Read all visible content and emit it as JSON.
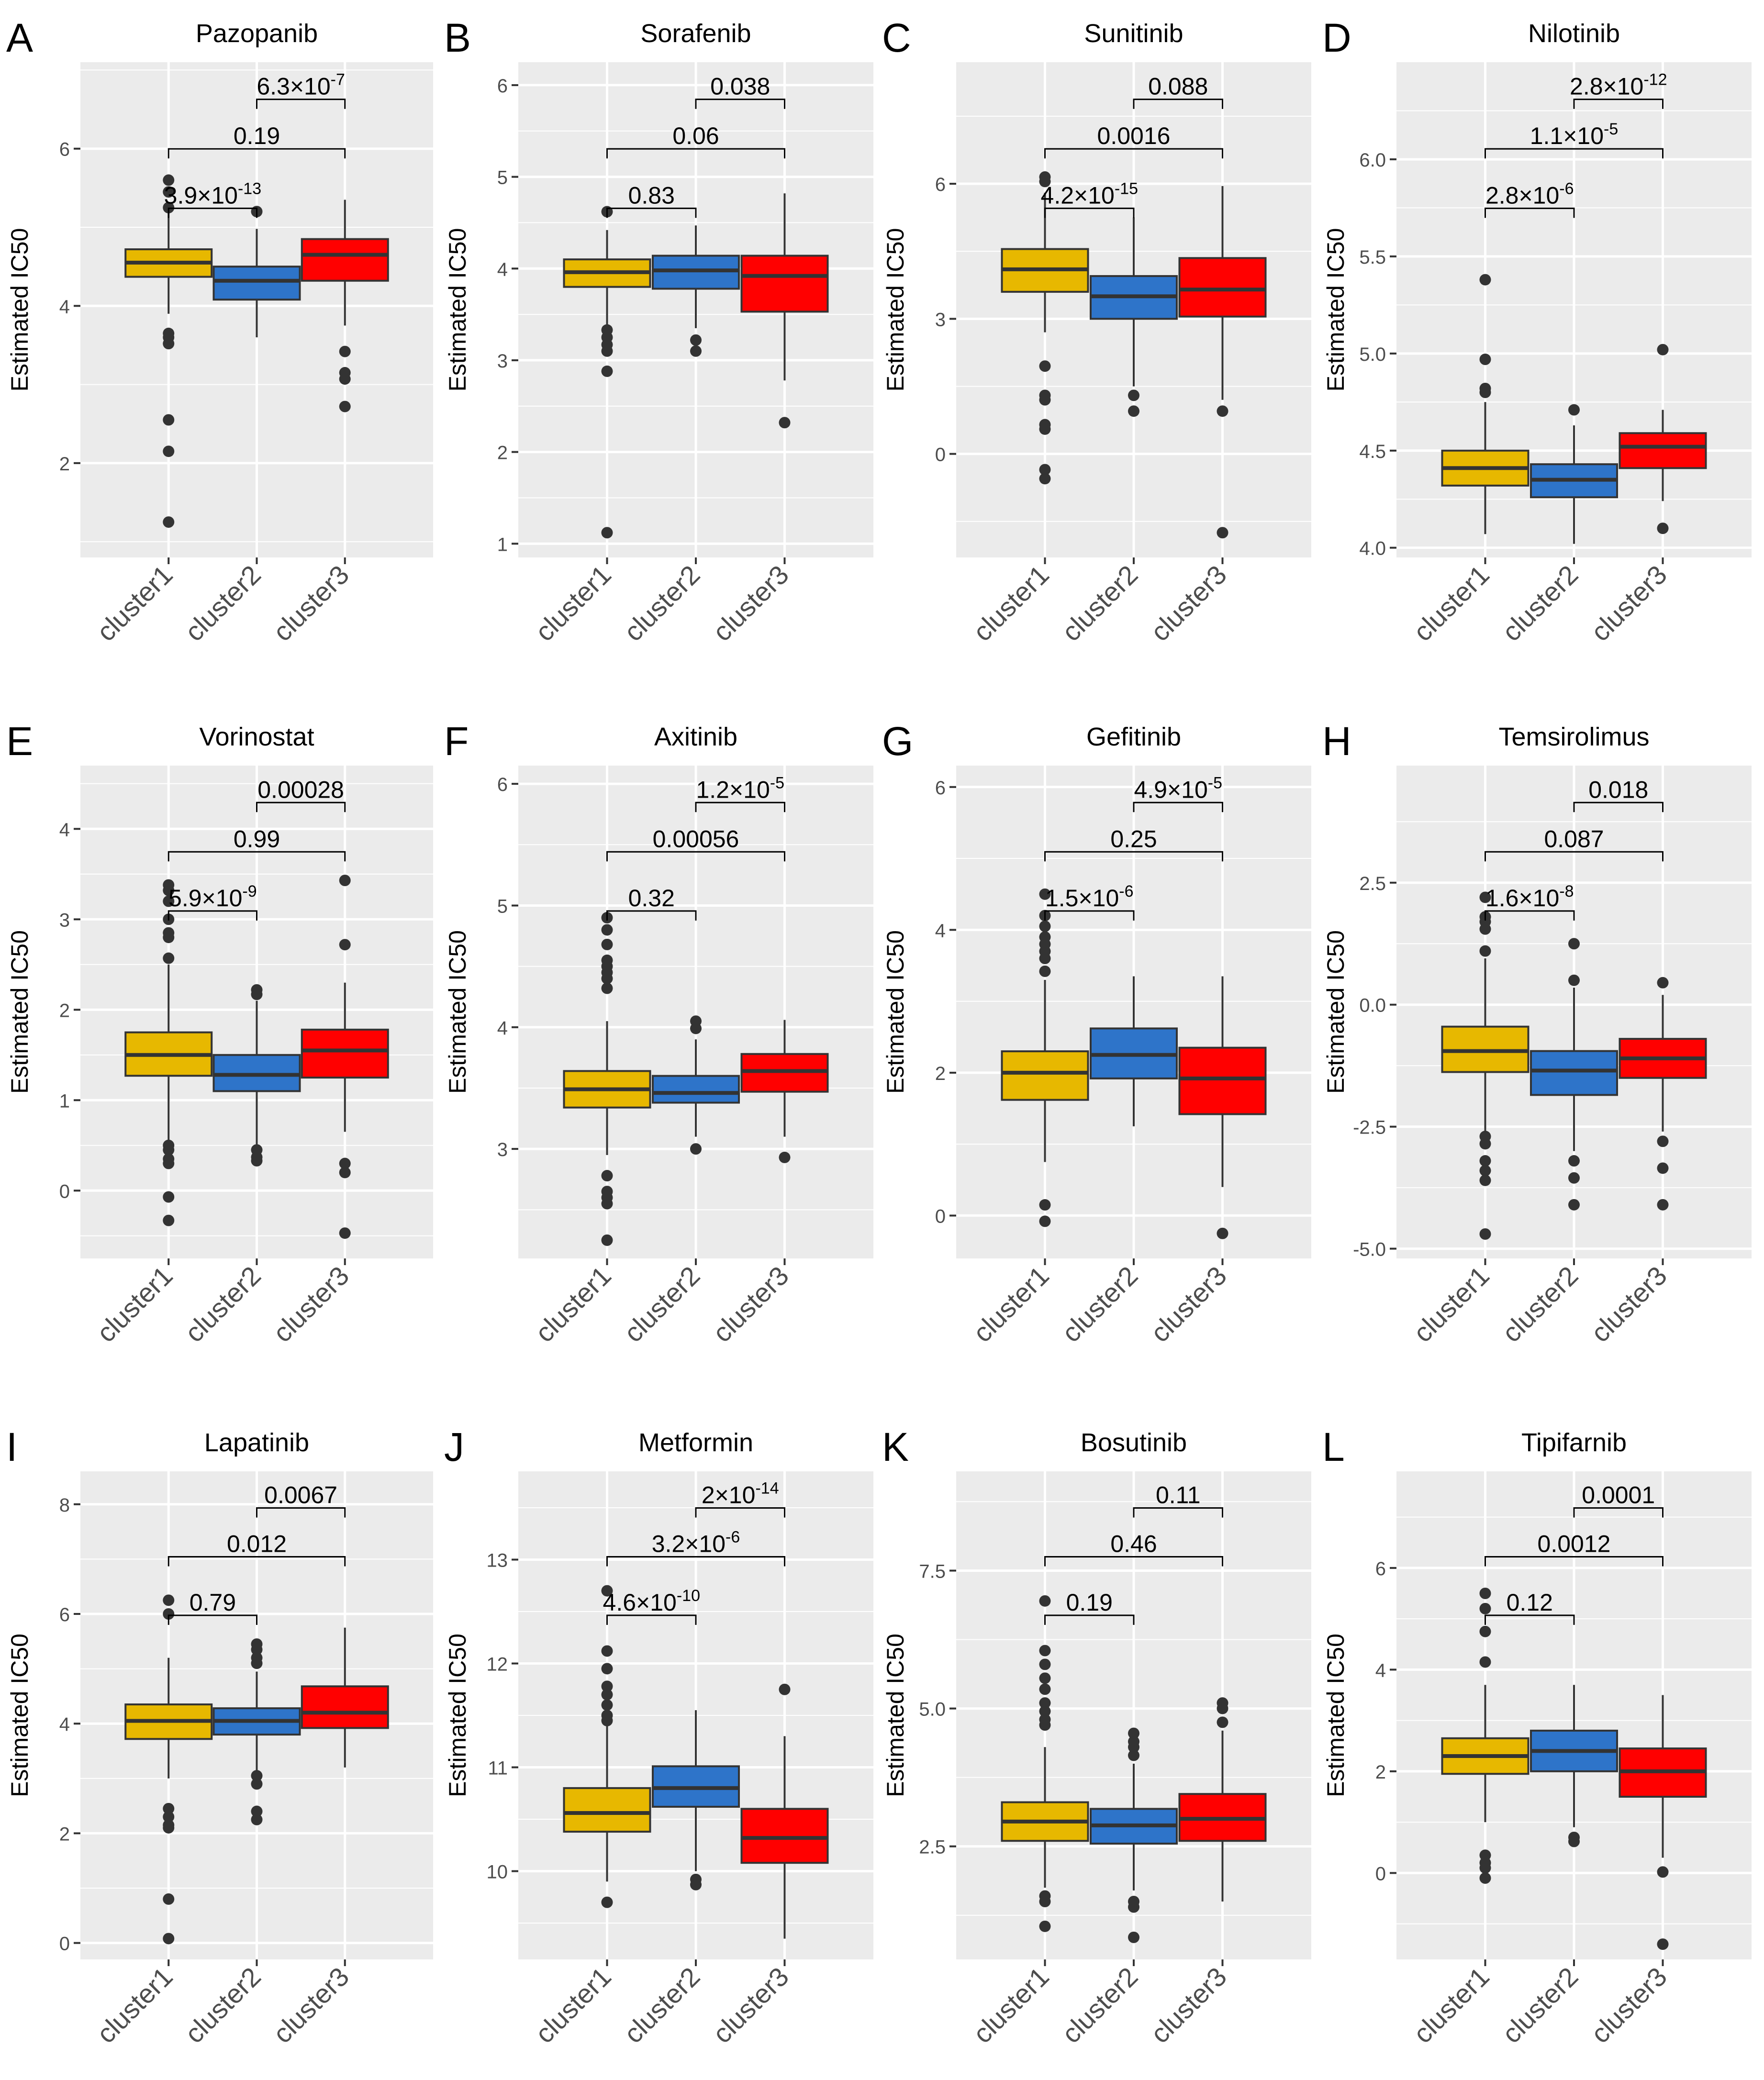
{
  "figure": {
    "axis_label_y": "Estimated IC50",
    "colors": {
      "cluster1": "#E7B800",
      "cluster2": "#2E74C9",
      "cluster3": "#FF0000",
      "panel_bg": "#EBEBEB",
      "grid": "#FFFFFF",
      "box_line": "#333333"
    }
  },
  "chart_data": [
    {
      "letter": "A",
      "title": "Pazopanib",
      "type": "box",
      "categories": [
        "cluster1",
        "cluster2",
        "cluster3"
      ],
      "ylim": [
        0.8,
        7.1
      ],
      "yticks": [
        2,
        4,
        6
      ],
      "ytick_labels": [
        "2",
        "4",
        "6"
      ],
      "boxes": [
        {
          "whislo": 3.9,
          "q1": 4.37,
          "med": 4.55,
          "q3": 4.72,
          "whishi": 5.2,
          "outliers": [
            5.6,
            5.45,
            5.25,
            3.65,
            3.6,
            3.52,
            2.55,
            2.15,
            1.25
          ]
        },
        {
          "whislo": 3.6,
          "q1": 4.08,
          "med": 4.32,
          "q3": 4.5,
          "whishi": 4.98,
          "outliers": [
            5.2
          ]
        },
        {
          "whislo": 3.75,
          "q1": 4.32,
          "med": 4.65,
          "q3": 4.85,
          "whishi": 5.35,
          "outliers": [
            3.42,
            3.15,
            3.07,
            2.72
          ]
        }
      ],
      "comparisons": [
        {
          "from": 0,
          "to": 1,
          "level": 0,
          "base": "3.9×10",
          "exp": "-13"
        },
        {
          "from": 0,
          "to": 2,
          "level": 1,
          "base": "0.19",
          "exp": ""
        },
        {
          "from": 1,
          "to": 2,
          "level": 2,
          "base": "6.3×10",
          "exp": "-7"
        }
      ]
    },
    {
      "letter": "B",
      "title": "Sorafenib",
      "type": "box",
      "categories": [
        "cluster1",
        "cluster2",
        "cluster3"
      ],
      "ylim": [
        0.85,
        6.25
      ],
      "yticks": [
        1,
        2,
        3,
        4,
        5,
        6
      ],
      "ytick_labels": [
        "1",
        "2",
        "3",
        "4",
        "5",
        "6"
      ],
      "boxes": [
        {
          "whislo": 3.38,
          "q1": 3.8,
          "med": 3.96,
          "q3": 4.1,
          "whishi": 4.42,
          "outliers": [
            4.62,
            3.33,
            3.25,
            3.17,
            3.1,
            2.88,
            1.12
          ]
        },
        {
          "whislo": 3.35,
          "q1": 3.78,
          "med": 3.98,
          "q3": 4.14,
          "whishi": 4.47,
          "outliers": [
            3.22,
            3.1
          ]
        },
        {
          "whislo": 2.78,
          "q1": 3.53,
          "med": 3.92,
          "q3": 4.14,
          "whishi": 4.82,
          "outliers": [
            2.32
          ]
        }
      ],
      "comparisons": [
        {
          "from": 0,
          "to": 1,
          "level": 0,
          "base": "0.83",
          "exp": ""
        },
        {
          "from": 0,
          "to": 2,
          "level": 1,
          "base": "0.06",
          "exp": ""
        },
        {
          "from": 1,
          "to": 2,
          "level": 2,
          "base": "0.038",
          "exp": ""
        }
      ]
    },
    {
      "letter": "C",
      "title": "Sunitinib",
      "type": "box",
      "categories": [
        "cluster1",
        "cluster2",
        "cluster3"
      ],
      "ylim": [
        -2.3,
        8.7
      ],
      "yticks": [
        0,
        3,
        6
      ],
      "ytick_labels": [
        "0",
        "3",
        "6"
      ],
      "boxes": [
        {
          "whislo": 2.7,
          "q1": 3.6,
          "med": 4.1,
          "q3": 4.55,
          "whishi": 5.8,
          "outliers": [
            6.15,
            6.05,
            1.95,
            1.3,
            1.2,
            0.65,
            0.55,
            -0.35,
            -0.55
          ]
        },
        {
          "whislo": 1.5,
          "q1": 3.0,
          "med": 3.5,
          "q3": 3.95,
          "whishi": 5.25,
          "outliers": [
            1.3,
            0.95
          ]
        },
        {
          "whislo": 1.2,
          "q1": 3.05,
          "med": 3.65,
          "q3": 4.35,
          "whishi": 5.95,
          "outliers": [
            0.95,
            -1.75
          ]
        }
      ],
      "comparisons": [
        {
          "from": 0,
          "to": 1,
          "level": 0,
          "base": "4.2×10",
          "exp": "-15"
        },
        {
          "from": 0,
          "to": 2,
          "level": 1,
          "base": "0.0016",
          "exp": ""
        },
        {
          "from": 1,
          "to": 2,
          "level": 2,
          "base": "0.088",
          "exp": ""
        }
      ]
    },
    {
      "letter": "D",
      "title": "Nilotinib",
      "type": "box",
      "categories": [
        "cluster1",
        "cluster2",
        "cluster3"
      ],
      "ylim": [
        3.95,
        6.5
      ],
      "yticks": [
        4.0,
        4.5,
        5.0,
        5.5,
        6.0
      ],
      "ytick_labels": [
        "4.0",
        "4.5",
        "5.0",
        "5.5",
        "6.0"
      ],
      "boxes": [
        {
          "whislo": 4.07,
          "q1": 4.32,
          "med": 4.41,
          "q3": 4.5,
          "whishi": 4.75,
          "outliers": [
            5.38,
            4.97,
            4.82,
            4.8
          ]
        },
        {
          "whislo": 4.02,
          "q1": 4.26,
          "med": 4.35,
          "q3": 4.43,
          "whishi": 4.63,
          "outliers": [
            4.71
          ]
        },
        {
          "whislo": 4.24,
          "q1": 4.41,
          "med": 4.52,
          "q3": 4.59,
          "whishi": 4.71,
          "outliers": [
            5.02,
            4.1
          ]
        }
      ],
      "comparisons": [
        {
          "from": 0,
          "to": 1,
          "level": 0,
          "base": "2.8×10",
          "exp": "-6"
        },
        {
          "from": 0,
          "to": 2,
          "level": 1,
          "base": "1.1×10",
          "exp": "-5"
        },
        {
          "from": 1,
          "to": 2,
          "level": 2,
          "base": "2.8×10",
          "exp": "-12"
        }
      ]
    },
    {
      "letter": "E",
      "title": "Vorinostat",
      "type": "box",
      "categories": [
        "cluster1",
        "cluster2",
        "cluster3"
      ],
      "ylim": [
        -0.75,
        4.7
      ],
      "yticks": [
        0,
        1,
        2,
        3,
        4
      ],
      "ytick_labels": [
        "0",
        "1",
        "2",
        "3",
        "4"
      ],
      "boxes": [
        {
          "whislo": 0.55,
          "q1": 1.27,
          "med": 1.5,
          "q3": 1.75,
          "whishi": 2.5,
          "outliers": [
            3.38,
            3.32,
            3.2,
            3.0,
            2.85,
            2.8,
            2.57,
            0.5,
            0.45,
            0.35,
            0.3,
            -0.07,
            -0.33
          ]
        },
        {
          "whislo": 0.5,
          "q1": 1.1,
          "med": 1.28,
          "q3": 1.5,
          "whishi": 2.1,
          "outliers": [
            2.22,
            2.17,
            0.45,
            0.37,
            0.33
          ]
        },
        {
          "whislo": 0.65,
          "q1": 1.25,
          "med": 1.55,
          "q3": 1.78,
          "whishi": 2.3,
          "outliers": [
            3.43,
            2.72,
            0.3,
            0.2,
            -0.47
          ]
        }
      ],
      "comparisons": [
        {
          "from": 0,
          "to": 1,
          "level": 0,
          "base": "5.9×10",
          "exp": "-9"
        },
        {
          "from": 0,
          "to": 2,
          "level": 1,
          "base": "0.99",
          "exp": ""
        },
        {
          "from": 1,
          "to": 2,
          "level": 2,
          "base": "0.00028",
          "exp": ""
        }
      ]
    },
    {
      "letter": "F",
      "title": "Axitinib",
      "type": "box",
      "categories": [
        "cluster1",
        "cluster2",
        "cluster3"
      ],
      "ylim": [
        2.1,
        6.15
      ],
      "yticks": [
        3,
        4,
        5,
        6
      ],
      "ytick_labels": [
        "3",
        "4",
        "5",
        "6"
      ],
      "boxes": [
        {
          "whislo": 2.95,
          "q1": 3.34,
          "med": 3.49,
          "q3": 3.64,
          "whishi": 4.05,
          "outliers": [
            4.9,
            4.8,
            4.68,
            4.55,
            4.5,
            4.45,
            4.4,
            4.32,
            2.78,
            2.65,
            2.6,
            2.55,
            2.25
          ]
        },
        {
          "whislo": 3.1,
          "q1": 3.38,
          "med": 3.46,
          "q3": 3.6,
          "whishi": 3.9,
          "outliers": [
            4.05,
            3.99,
            3.0
          ]
        },
        {
          "whislo": 3.1,
          "q1": 3.47,
          "med": 3.64,
          "q3": 3.78,
          "whishi": 4.06,
          "outliers": [
            2.93
          ]
        }
      ],
      "comparisons": [
        {
          "from": 0,
          "to": 1,
          "level": 0,
          "base": "0.32",
          "exp": ""
        },
        {
          "from": 0,
          "to": 2,
          "level": 1,
          "base": "0.00056",
          "exp": ""
        },
        {
          "from": 1,
          "to": 2,
          "level": 2,
          "base": "1.2×10",
          "exp": "-5"
        }
      ]
    },
    {
      "letter": "G",
      "title": "Gefitinib",
      "type": "box",
      "categories": [
        "cluster1",
        "cluster2",
        "cluster3"
      ],
      "ylim": [
        -0.6,
        6.3
      ],
      "yticks": [
        0,
        2,
        4,
        6
      ],
      "ytick_labels": [
        "0",
        "2",
        "4",
        "6"
      ],
      "boxes": [
        {
          "whislo": 0.75,
          "q1": 1.62,
          "med": 2.0,
          "q3": 2.3,
          "whishi": 3.3,
          "outliers": [
            4.5,
            4.2,
            4.05,
            3.9,
            3.8,
            3.7,
            3.6,
            3.42,
            0.15,
            -0.08
          ]
        },
        {
          "whislo": 1.25,
          "q1": 1.92,
          "med": 2.25,
          "q3": 2.62,
          "whishi": 3.35,
          "outliers": []
        },
        {
          "whislo": 0.4,
          "q1": 1.42,
          "med": 1.92,
          "q3": 2.35,
          "whishi": 3.35,
          "outliers": [
            -0.25
          ]
        }
      ],
      "comparisons": [
        {
          "from": 0,
          "to": 1,
          "level": 0,
          "base": "1.5×10",
          "exp": "-6"
        },
        {
          "from": 0,
          "to": 2,
          "level": 1,
          "base": "0.25",
          "exp": ""
        },
        {
          "from": 1,
          "to": 2,
          "level": 2,
          "base": "4.9×10",
          "exp": "-5"
        }
      ]
    },
    {
      "letter": "H",
      "title": "Temsirolimus",
      "type": "box",
      "categories": [
        "cluster1",
        "cluster2",
        "cluster3"
      ],
      "ylim": [
        -5.2,
        4.9
      ],
      "yticks": [
        -5.0,
        -2.5,
        0.0,
        2.5
      ],
      "ytick_labels": [
        "-5.0",
        "-2.5",
        "0.0",
        "2.5"
      ],
      "boxes": [
        {
          "whislo": -2.65,
          "q1": -1.38,
          "med": -0.95,
          "q3": -0.45,
          "whishi": 0.95,
          "outliers": [
            2.2,
            1.8,
            1.7,
            1.55,
            1.1,
            -2.7,
            -2.85,
            -3.2,
            -3.4,
            -3.6,
            -4.7
          ]
        },
        {
          "whislo": -3.0,
          "q1": -1.85,
          "med": -1.35,
          "q3": -0.95,
          "whishi": 0.35,
          "outliers": [
            1.25,
            0.5,
            -3.2,
            -3.55,
            -4.1
          ]
        },
        {
          "whislo": -2.6,
          "q1": -1.5,
          "med": -1.1,
          "q3": -0.7,
          "whishi": 0.2,
          "outliers": [
            0.45,
            -2.8,
            -3.35,
            -4.1
          ]
        }
      ],
      "comparisons": [
        {
          "from": 0,
          "to": 1,
          "level": 0,
          "base": "1.6×10",
          "exp": "-8"
        },
        {
          "from": 0,
          "to": 2,
          "level": 1,
          "base": "0.087",
          "exp": ""
        },
        {
          "from": 1,
          "to": 2,
          "level": 2,
          "base": "0.018",
          "exp": ""
        }
      ]
    },
    {
      "letter": "I",
      "title": "Lapatinib",
      "type": "box",
      "categories": [
        "cluster1",
        "cluster2",
        "cluster3"
      ],
      "ylim": [
        -0.3,
        8.6
      ],
      "yticks": [
        0,
        2,
        4,
        6,
        8
      ],
      "ytick_labels": [
        "0",
        "2",
        "4",
        "6",
        "8"
      ],
      "boxes": [
        {
          "whislo": 3.0,
          "q1": 3.72,
          "med": 4.05,
          "q3": 4.35,
          "whishi": 5.2,
          "outliers": [
            6.25,
            6.0,
            2.45,
            2.3,
            2.15,
            2.1,
            0.8,
            0.08
          ]
        },
        {
          "whislo": 3.05,
          "q1": 3.8,
          "med": 4.05,
          "q3": 4.28,
          "whishi": 4.95,
          "outliers": [
            5.45,
            5.35,
            5.2,
            5.1,
            3.05,
            2.9,
            2.4,
            2.25
          ]
        },
        {
          "whislo": 3.2,
          "q1": 3.92,
          "med": 4.2,
          "q3": 4.68,
          "whishi": 5.75,
          "outliers": []
        }
      ],
      "comparisons": [
        {
          "from": 0,
          "to": 1,
          "level": 0,
          "base": "0.79",
          "exp": ""
        },
        {
          "from": 0,
          "to": 2,
          "level": 1,
          "base": "0.012",
          "exp": ""
        },
        {
          "from": 1,
          "to": 2,
          "level": 2,
          "base": "0.0067",
          "exp": ""
        }
      ]
    },
    {
      "letter": "J",
      "title": "Metformin",
      "type": "box",
      "categories": [
        "cluster1",
        "cluster2",
        "cluster3"
      ],
      "ylim": [
        9.15,
        13.85
      ],
      "yticks": [
        10,
        11,
        12,
        13
      ],
      "ytick_labels": [
        "10",
        "11",
        "12",
        "13"
      ],
      "boxes": [
        {
          "whislo": 9.9,
          "q1": 10.38,
          "med": 10.56,
          "q3": 10.8,
          "whishi": 11.4,
          "outliers": [
            12.7,
            12.12,
            11.95,
            11.78,
            11.7,
            11.6,
            11.5,
            11.45,
            9.7
          ]
        },
        {
          "whislo": 10.0,
          "q1": 10.62,
          "med": 10.8,
          "q3": 11.01,
          "whishi": 11.55,
          "outliers": [
            9.92,
            9.87
          ]
        },
        {
          "whislo": 9.35,
          "q1": 10.08,
          "med": 10.32,
          "q3": 10.6,
          "whishi": 11.3,
          "outliers": [
            11.75
          ]
        }
      ],
      "comparisons": [
        {
          "from": 0,
          "to": 1,
          "level": 0,
          "base": "4.6×10",
          "exp": "-10"
        },
        {
          "from": 0,
          "to": 2,
          "level": 1,
          "base": "3.2×10",
          "exp": "-6"
        },
        {
          "from": 1,
          "to": 2,
          "level": 2,
          "base": "2×10",
          "exp": "-14"
        }
      ]
    },
    {
      "letter": "K",
      "title": "Bosutinib",
      "type": "box",
      "categories": [
        "cluster1",
        "cluster2",
        "cluster3"
      ],
      "ylim": [
        0.45,
        9.3
      ],
      "yticks": [
        2.5,
        5.0,
        7.5
      ],
      "ytick_labels": [
        "2.5",
        "5.0",
        "7.5"
      ],
      "boxes": [
        {
          "whislo": 1.75,
          "q1": 2.6,
          "med": 2.95,
          "q3": 3.3,
          "whishi": 4.3,
          "outliers": [
            6.95,
            6.05,
            5.8,
            5.55,
            5.35,
            5.1,
            4.95,
            4.8,
            4.7,
            1.6,
            1.5,
            1.05
          ]
        },
        {
          "whislo": 1.7,
          "q1": 2.55,
          "med": 2.88,
          "q3": 3.18,
          "whishi": 4.0,
          "outliers": [
            4.55,
            4.4,
            4.3,
            4.15,
            1.5,
            1.4,
            0.85
          ]
        },
        {
          "whislo": 1.5,
          "q1": 2.6,
          "med": 3.0,
          "q3": 3.45,
          "whishi": 4.6,
          "outliers": [
            5.1,
            5.0,
            4.75
          ]
        }
      ],
      "comparisons": [
        {
          "from": 0,
          "to": 1,
          "level": 0,
          "base": "0.19",
          "exp": ""
        },
        {
          "from": 0,
          "to": 2,
          "level": 1,
          "base": "0.46",
          "exp": ""
        },
        {
          "from": 1,
          "to": 2,
          "level": 2,
          "base": "0.11",
          "exp": ""
        }
      ]
    },
    {
      "letter": "L",
      "title": "Tipifarnib",
      "type": "box",
      "categories": [
        "cluster1",
        "cluster2",
        "cluster3"
      ],
      "ylim": [
        -1.7,
        7.9
      ],
      "yticks": [
        0,
        2,
        4,
        6
      ],
      "ytick_labels": [
        "0",
        "2",
        "4",
        "6"
      ],
      "boxes": [
        {
          "whislo": 1.0,
          "q1": 1.95,
          "med": 2.3,
          "q3": 2.65,
          "whishi": 3.7,
          "outliers": [
            5.5,
            5.2,
            4.75,
            4.15,
            0.35,
            0.2,
            0.1,
            -0.1
          ]
        },
        {
          "whislo": 0.9,
          "q1": 2.0,
          "med": 2.4,
          "q3": 2.8,
          "whishi": 3.7,
          "outliers": [
            0.7,
            0.62
          ]
        },
        {
          "whislo": 0.3,
          "q1": 1.5,
          "med": 2.0,
          "q3": 2.45,
          "whishi": 3.5,
          "outliers": [
            0.02,
            -1.4
          ]
        }
      ],
      "comparisons": [
        {
          "from": 0,
          "to": 1,
          "level": 0,
          "base": "0.12",
          "exp": ""
        },
        {
          "from": 0,
          "to": 2,
          "level": 1,
          "base": "0.0012",
          "exp": ""
        },
        {
          "from": 1,
          "to": 2,
          "level": 2,
          "base": "0.0001",
          "exp": ""
        }
      ]
    }
  ]
}
